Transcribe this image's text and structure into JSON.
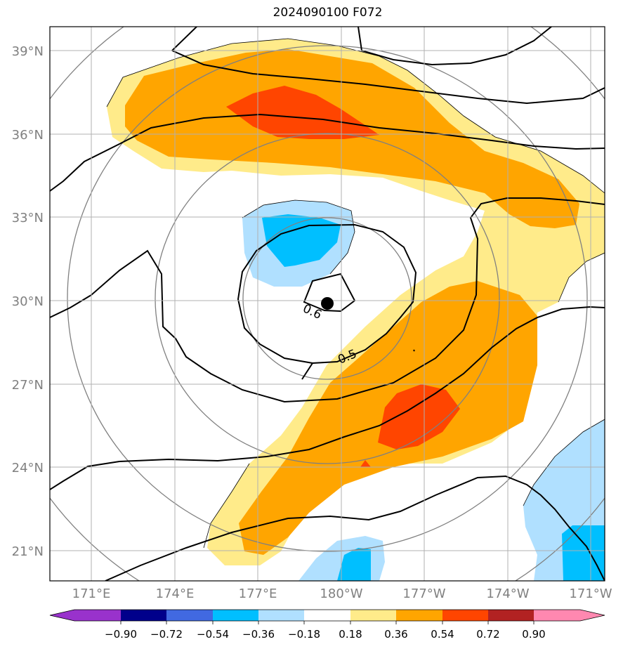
{
  "title": "2024090100 F072",
  "axes": {
    "lat_labels": [
      "39°N",
      "36°N",
      "33°N",
      "30°N",
      "27°N",
      "24°N",
      "21°N"
    ],
    "lon_labels": [
      "171°E",
      "174°E",
      "177°E",
      "180°W",
      "177°W",
      "174°W",
      "171°W"
    ],
    "tick_color": "#808080",
    "gridlines": true
  },
  "contour_labels": [
    "0.6",
    "0.5"
  ],
  "storm_center_marker": "filled-circle",
  "colorbar": {
    "ticks": [
      "−0.90",
      "−0.72",
      "−0.54",
      "−0.36",
      "−0.18",
      "0.18",
      "0.36",
      "0.54",
      "0.72",
      "0.90"
    ],
    "colors": [
      "#9932cc",
      "#00008b",
      "#4169e1",
      "#00bfff",
      "#b0e0ff",
      "#ffffff",
      "#ffeb8a",
      "#ffa500",
      "#ff4500",
      "#b22222",
      "#ff88b0"
    ],
    "extend": "both"
  },
  "shading_colors": {
    "light_yellow": "#ffeb8a",
    "orange": "#ffa500",
    "red_orange": "#ff4500",
    "light_blue": "#b0e0ff",
    "deep_sky_blue": "#00bfff"
  }
}
